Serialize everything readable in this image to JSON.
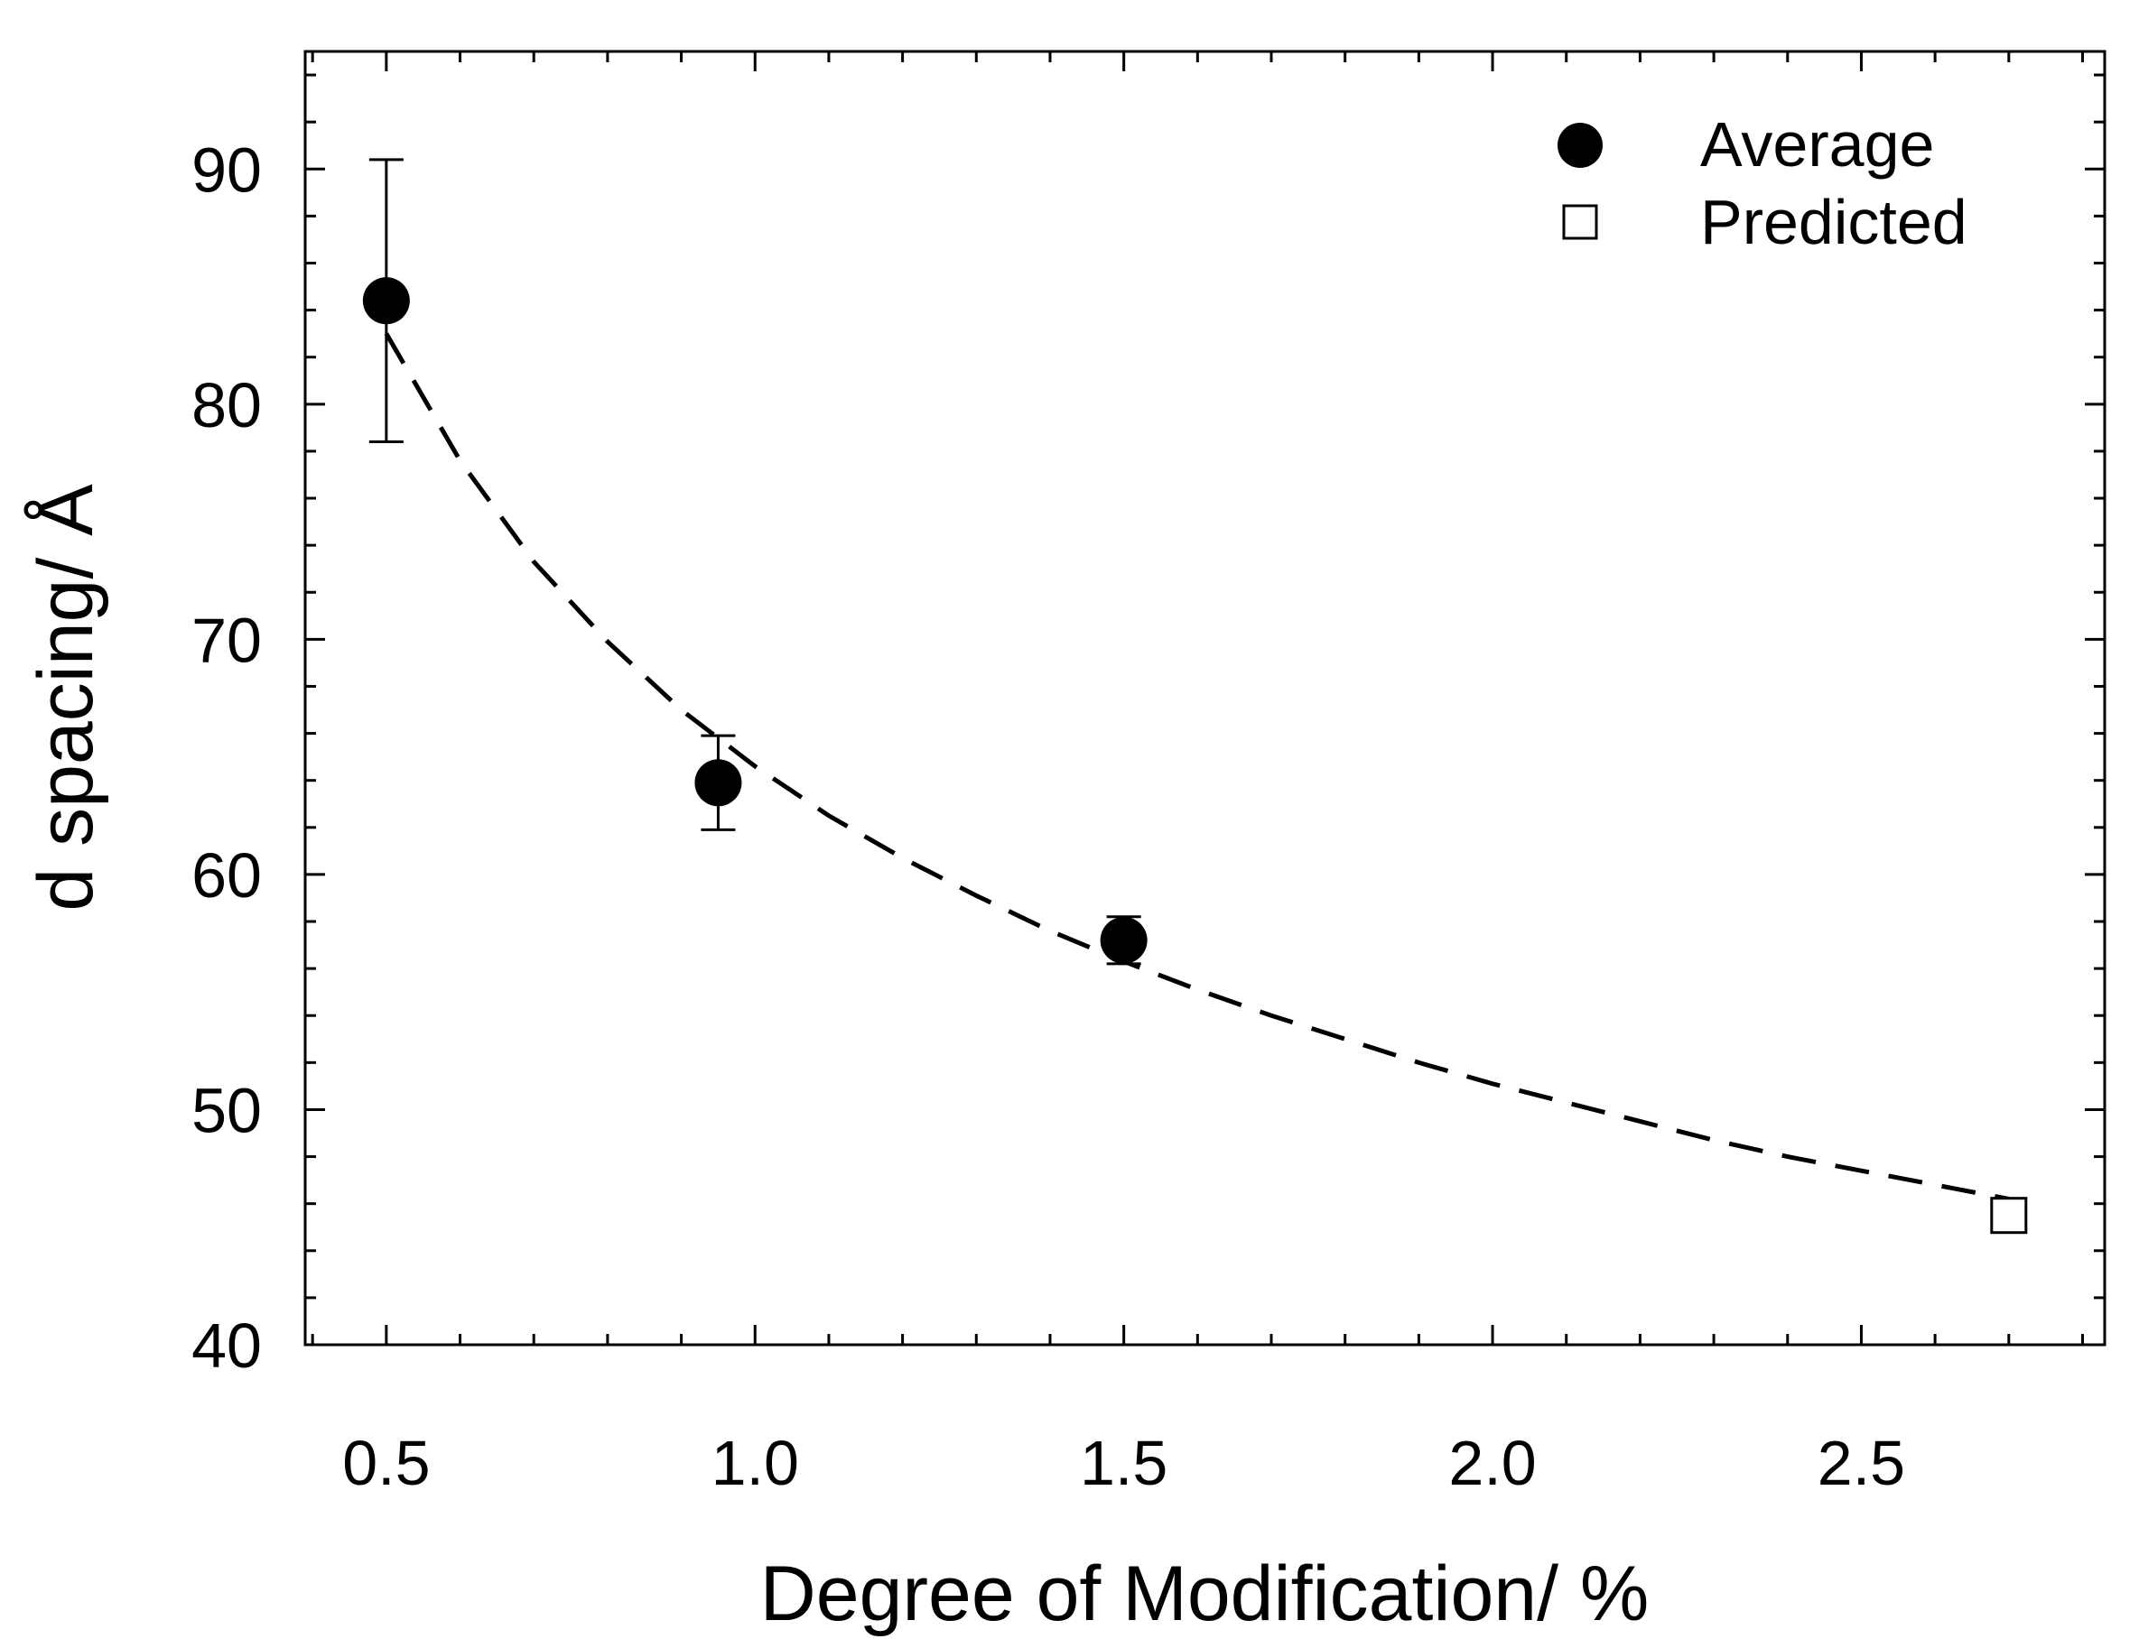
{
  "chart_data": {
    "type": "scatter",
    "title": "",
    "xlabel": "Degree of Modification/ %",
    "ylabel": "d spacing/ Å",
    "xlim": [
      0.39,
      2.83
    ],
    "ylim": [
      40,
      95
    ],
    "x_ticks": [
      0.5,
      1.0,
      1.5,
      2.0,
      2.5
    ],
    "x_tick_labels": [
      "0.5",
      "1.0",
      "1.5",
      "2.0",
      "2.5"
    ],
    "y_ticks": [
      40,
      50,
      60,
      70,
      80,
      90
    ],
    "y_tick_labels": [
      "40",
      "50",
      "60",
      "70",
      "80",
      "90"
    ],
    "grid": false,
    "legend_position": "top-right",
    "series": [
      {
        "name": "Average",
        "marker": "filled-circle",
        "x": [
          0.5,
          0.95,
          1.5
        ],
        "y": [
          84.4,
          63.9,
          57.2
        ],
        "error": [
          6.0,
          2.0,
          1.0
        ]
      },
      {
        "name": "Predicted",
        "marker": "open-square",
        "x": [
          2.7
        ],
        "y": [
          45.5
        ]
      },
      {
        "name": "fit",
        "style": "dashed-line",
        "x": [
          0.5,
          0.6,
          0.7,
          0.8,
          0.9,
          1.0,
          1.1,
          1.2,
          1.3,
          1.4,
          1.5,
          1.6,
          1.7,
          1.8,
          1.9,
          2.0,
          2.1,
          2.2,
          2.3,
          2.4,
          2.5,
          2.6,
          2.7
        ],
        "y": [
          83.0,
          77.6,
          73.3,
          69.9,
          67.0,
          64.6,
          62.5,
          60.7,
          59.1,
          57.6,
          56.3,
          55.1,
          54.0,
          53.0,
          52.0,
          51.1,
          50.3,
          49.5,
          48.7,
          48.0,
          47.4,
          46.8,
          46.2
        ]
      }
    ]
  }
}
